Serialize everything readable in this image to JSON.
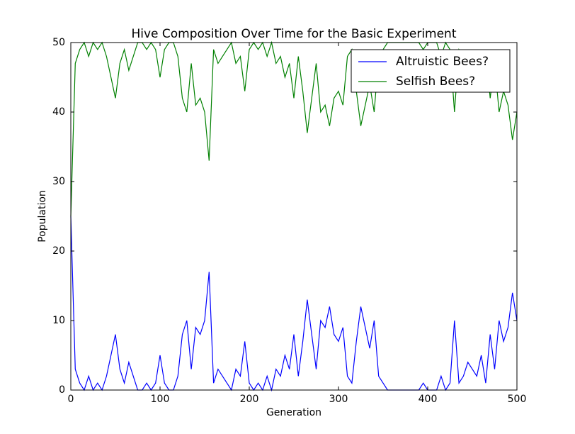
{
  "chart_data": {
    "type": "line",
    "title": "Hive Composition Over Time for the Basic Experiment",
    "x_label": "Generation",
    "y_label": "Population",
    "x": [
      0,
      5,
      10,
      15,
      20,
      25,
      30,
      35,
      40,
      45,
      50,
      55,
      60,
      65,
      70,
      75,
      80,
      85,
      90,
      95,
      100,
      105,
      110,
      115,
      120,
      125,
      130,
      135,
      140,
      145,
      150,
      155,
      160,
      165,
      170,
      175,
      180,
      185,
      190,
      195,
      200,
      205,
      210,
      215,
      220,
      225,
      230,
      235,
      240,
      245,
      250,
      255,
      260,
      265,
      270,
      275,
      280,
      285,
      290,
      295,
      300,
      305,
      310,
      315,
      320,
      325,
      330,
      335,
      340,
      345,
      350,
      355,
      360,
      365,
      370,
      375,
      380,
      385,
      390,
      395,
      400,
      405,
      410,
      415,
      420,
      425,
      430,
      435,
      440,
      445,
      450,
      455,
      460,
      465,
      470,
      475,
      480,
      485,
      490,
      495,
      500
    ],
    "series": [
      {
        "name": "Altruistic Bees?",
        "color": "#0000ff",
        "values": [
          25,
          3,
          1,
          0,
          2,
          0,
          1,
          0,
          2,
          5,
          8,
          3,
          1,
          4,
          2,
          0,
          0,
          1,
          0,
          1,
          5,
          1,
          0,
          0,
          2,
          8,
          10,
          3,
          9,
          8,
          10,
          17,
          1,
          3,
          2,
          1,
          0,
          3,
          2,
          7,
          1,
          0,
          1,
          0,
          2,
          0,
          3,
          2,
          5,
          3,
          8,
          2,
          7,
          13,
          8,
          3,
          10,
          9,
          12,
          8,
          7,
          9,
          2,
          1,
          7,
          12,
          9,
          6,
          10,
          2,
          1,
          0,
          0,
          0,
          0,
          0,
          0,
          0,
          0,
          1,
          0,
          0,
          0,
          2,
          0,
          1,
          10,
          1,
          2,
          4,
          3,
          2,
          5,
          1,
          8,
          3,
          10,
          7,
          9,
          14,
          10
        ]
      },
      {
        "name": "Selfish Bees?",
        "color": "#008000",
        "values": [
          25,
          47,
          49,
          50,
          48,
          50,
          49,
          50,
          48,
          45,
          42,
          47,
          49,
          46,
          48,
          50,
          50,
          49,
          50,
          49,
          45,
          49,
          50,
          50,
          48,
          42,
          40,
          47,
          41,
          42,
          40,
          33,
          49,
          47,
          48,
          49,
          50,
          47,
          48,
          43,
          49,
          50,
          49,
          50,
          48,
          50,
          47,
          48,
          45,
          47,
          42,
          48,
          43,
          37,
          42,
          47,
          40,
          41,
          38,
          42,
          43,
          41,
          48,
          49,
          43,
          38,
          41,
          44,
          40,
          48,
          49,
          50,
          50,
          50,
          50,
          50,
          50,
          50,
          50,
          49,
          50,
          50,
          50,
          48,
          50,
          49,
          40,
          49,
          48,
          46,
          47,
          48,
          45,
          49,
          42,
          47,
          40,
          43,
          41,
          36,
          40
        ]
      }
    ],
    "xlim": [
      0,
      500
    ],
    "ylim": [
      0,
      50
    ],
    "xticks": [
      0,
      100,
      200,
      300,
      400,
      500
    ],
    "yticks": [
      0,
      10,
      20,
      30,
      40,
      50
    ],
    "legend": "upper right"
  }
}
